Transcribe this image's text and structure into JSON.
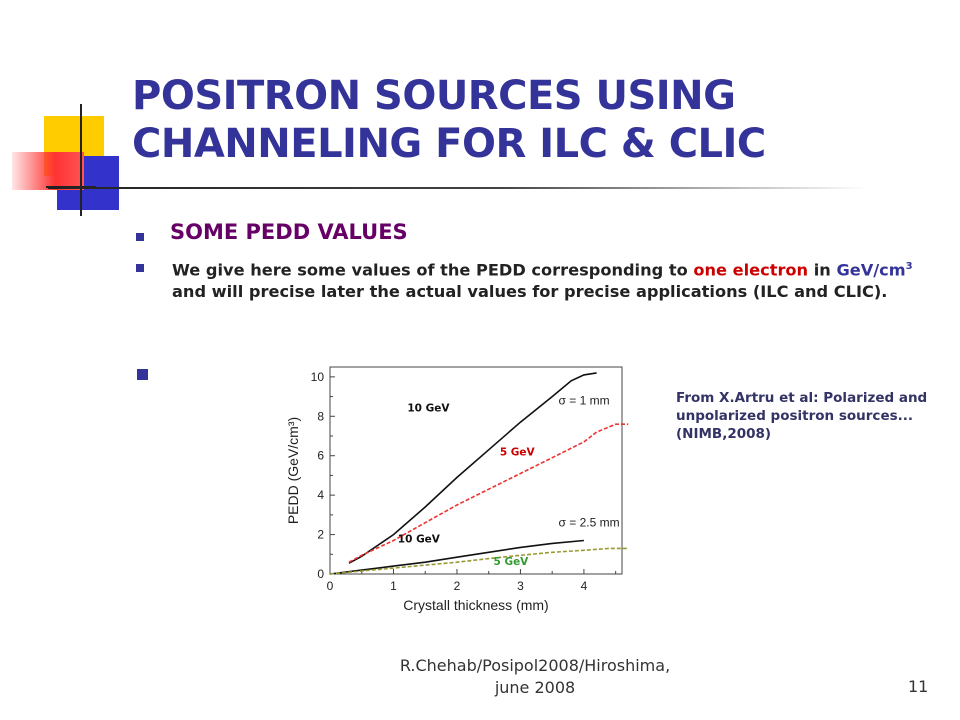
{
  "slide": {
    "title": "POSITRON SOURCES USING CHANNELING FOR ILC & CLIC",
    "bullet1": "SOME PEDD VALUES",
    "bullet2_parts": {
      "a": "We give here some values of the PEDD corresponding to ",
      "b": "one electron",
      "c": " in ",
      "d": "GeV/cm",
      "sup": "3",
      "e": " and will precise later the actual values for precise applications (ILC and CLIC)."
    },
    "citation": "From X.Artru et al: Polarized and unpolarized positron sources... (NIMB,2008)",
    "footer": "R.Chehab/Posipol2008/Hiroshima, june 2008",
    "page_number": "11"
  },
  "colors": {
    "title": "#333399",
    "heading": "#660066",
    "highlight_red": "#cc0000",
    "highlight_blue": "#333399",
    "deco_yellow": "#ffcc00",
    "deco_blue": "#3333cc",
    "deco_red": "#ff3333"
  },
  "chart_data": {
    "type": "line",
    "xlabel": "Crystall thickness (mm)",
    "ylabel": "PEDD (GeV/cm³)",
    "xlim": [
      0,
      4.6
    ],
    "ylim": [
      0,
      10.5
    ],
    "xticks": [
      0,
      1,
      2,
      3,
      4
    ],
    "yticks": [
      0,
      2,
      4,
      6,
      8,
      10
    ],
    "grid": false,
    "series": [
      {
        "name": "10 GeV",
        "group": "σ = 1 mm",
        "color": "#111111",
        "dash": "",
        "x": [
          0.3,
          0.5,
          1.0,
          1.5,
          2.0,
          2.5,
          3.0,
          3.5,
          3.8,
          4.0,
          4.2
        ],
        "y": [
          0.55,
          0.9,
          2.0,
          3.4,
          4.9,
          6.3,
          7.7,
          9.0,
          9.8,
          10.1,
          10.2
        ]
      },
      {
        "name": "5 GeV",
        "group": "σ = 1 mm",
        "color": "#ee3333",
        "dash": "4,2",
        "x": [
          0.3,
          0.5,
          1.0,
          1.5,
          2.0,
          2.5,
          3.0,
          3.5,
          4.0,
          4.2,
          4.5,
          4.7
        ],
        "y": [
          0.6,
          0.95,
          1.7,
          2.6,
          3.5,
          4.3,
          5.1,
          5.9,
          6.7,
          7.2,
          7.6,
          7.6
        ]
      },
      {
        "name": "10 GeV",
        "group": "σ = 2.5 mm",
        "color": "#111111",
        "dash": "",
        "x": [
          0.0,
          0.5,
          1.0,
          1.5,
          2.0,
          2.5,
          3.0,
          3.5,
          4.0
        ],
        "y": [
          0.0,
          0.2,
          0.4,
          0.6,
          0.85,
          1.1,
          1.35,
          1.55,
          1.7
        ]
      },
      {
        "name": "5 GeV",
        "group": "σ = 2.5 mm",
        "color": "#999933",
        "dash": "4,2",
        "x": [
          0.0,
          0.5,
          1.0,
          1.5,
          2.0,
          2.5,
          3.0,
          3.5,
          4.0,
          4.4,
          4.7
        ],
        "y": [
          0.0,
          0.15,
          0.3,
          0.45,
          0.6,
          0.78,
          0.95,
          1.1,
          1.2,
          1.3,
          1.3
        ]
      }
    ],
    "annotations": [
      {
        "text": "σ = 1 mm",
        "x": 3.6,
        "y": 8.6
      },
      {
        "text": "σ = 2.5 mm",
        "x": 3.6,
        "y": 2.4
      }
    ],
    "series_labels": [
      {
        "text": "10 GeV",
        "x": 1.55,
        "y": 8.25,
        "color": "#111111"
      },
      {
        "text": "5 GeV",
        "x": 2.95,
        "y": 6.0,
        "color": "#cc0000"
      },
      {
        "text": "10 GeV",
        "x": 1.4,
        "y": 1.6,
        "color": "#111111"
      },
      {
        "text": "5 GeV",
        "x": 2.85,
        "y": 0.45,
        "color": "#339933"
      }
    ]
  }
}
